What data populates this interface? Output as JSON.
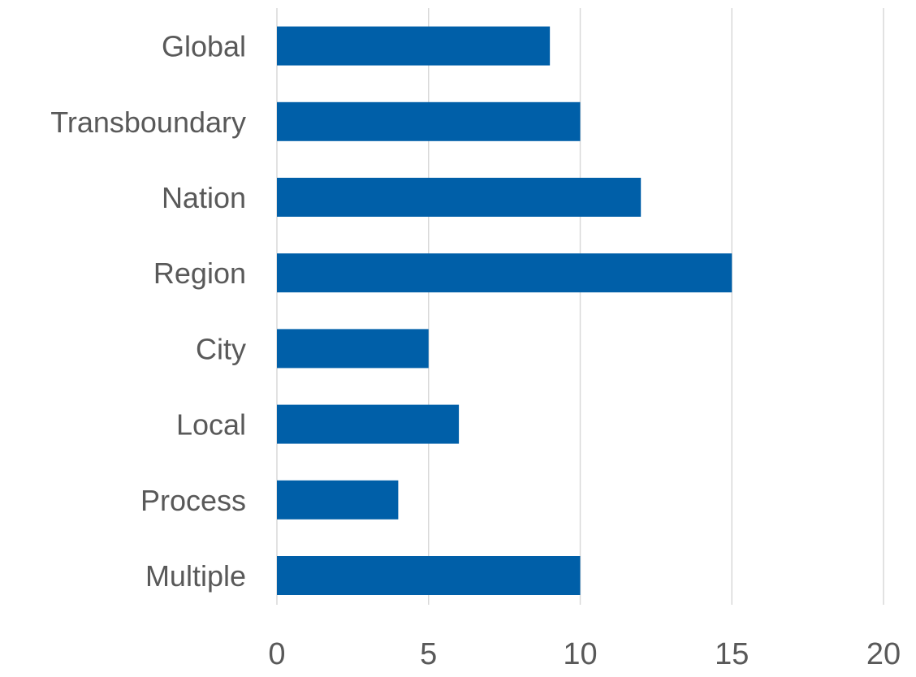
{
  "colors": {
    "bar": "#005fa8",
    "grid": "#d9d9d9",
    "text": "#595959",
    "background": "#ffffff"
  },
  "chart_data": {
    "type": "bar",
    "orientation": "horizontal",
    "title": "",
    "xlabel": "",
    "ylabel": "",
    "categories": [
      "Global",
      "Transboundary",
      "Nation",
      "Region",
      "City",
      "Local",
      "Process",
      "Multiple"
    ],
    "values": [
      9,
      10,
      12,
      15,
      5,
      6,
      4,
      10
    ],
    "xlim": [
      0,
      20
    ],
    "xticks": [
      0,
      5,
      10,
      15,
      20
    ],
    "grid": "vertical",
    "legend": "none"
  }
}
